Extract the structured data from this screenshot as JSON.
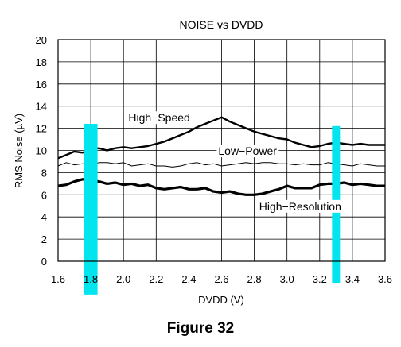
{
  "caption": "Figure 32",
  "chart_data": {
    "type": "line",
    "title": "NOISE vs DVDD",
    "xlabel": "DVDD (V)",
    "ylabel": "RMS Noise (µV)",
    "xlim": [
      1.6,
      3.6
    ],
    "ylim": [
      0,
      20
    ],
    "xticks": [
      "1.6",
      "1.8",
      "2.0",
      "2.2",
      "2.4",
      "2.6",
      "2.8",
      "3.0",
      "3.2",
      "3.4",
      "3.6"
    ],
    "yticks": [
      "0",
      "2",
      "4",
      "6",
      "8",
      "10",
      "12",
      "14",
      "16",
      "18",
      "20"
    ],
    "grid": true,
    "highlight_bands": [
      {
        "x": 1.8,
        "from": -3,
        "to": 12.4,
        "color": "#00e5ee"
      },
      {
        "x": 3.3,
        "from": -2,
        "to": 12.2,
        "color": "#00e5ee"
      }
    ],
    "series": [
      {
        "name": "High−Speed",
        "color": "#000000",
        "x": [
          1.6,
          1.65,
          1.7,
          1.75,
          1.8,
          1.85,
          1.9,
          1.95,
          2.0,
          2.05,
          2.1,
          2.15,
          2.2,
          2.25,
          2.3,
          2.35,
          2.4,
          2.45,
          2.5,
          2.55,
          2.6,
          2.65,
          2.7,
          2.75,
          2.8,
          2.85,
          2.9,
          2.95,
          3.0,
          3.05,
          3.1,
          3.15,
          3.2,
          3.25,
          3.3,
          3.35,
          3.4,
          3.45,
          3.5,
          3.55,
          3.6
        ],
        "y": [
          9.3,
          9.6,
          9.9,
          9.8,
          10.1,
          10.2,
          10.0,
          10.2,
          10.3,
          10.2,
          10.3,
          10.4,
          10.6,
          10.8,
          11.1,
          11.4,
          11.7,
          12.1,
          12.4,
          12.7,
          13.0,
          12.6,
          12.3,
          12.0,
          11.7,
          11.5,
          11.3,
          11.1,
          11.0,
          10.7,
          10.5,
          10.3,
          10.4,
          10.6,
          10.7,
          10.6,
          10.5,
          10.6,
          10.5,
          10.5,
          10.5
        ],
        "label_at": [
          2.03,
          12.6
        ]
      },
      {
        "name": "Low−Power",
        "color": "#000000",
        "x": [
          1.6,
          1.65,
          1.7,
          1.75,
          1.8,
          1.85,
          1.9,
          1.95,
          2.0,
          2.05,
          2.1,
          2.15,
          2.2,
          2.25,
          2.3,
          2.35,
          2.4,
          2.45,
          2.5,
          2.55,
          2.6,
          2.65,
          2.7,
          2.75,
          2.8,
          2.85,
          2.9,
          2.95,
          3.0,
          3.05,
          3.1,
          3.15,
          3.2,
          3.25,
          3.3,
          3.35,
          3.4,
          3.45,
          3.5,
          3.55,
          3.6
        ],
        "y": [
          8.6,
          8.9,
          8.7,
          8.8,
          8.7,
          8.9,
          8.9,
          8.8,
          8.9,
          8.6,
          8.7,
          8.8,
          8.6,
          8.6,
          8.5,
          8.6,
          8.8,
          8.9,
          8.7,
          8.8,
          8.6,
          8.7,
          8.8,
          8.9,
          8.8,
          8.9,
          8.9,
          8.8,
          8.8,
          8.7,
          8.8,
          8.7,
          8.7,
          8.9,
          8.8,
          8.7,
          8.6,
          8.8,
          8.7,
          8.6,
          8.6
        ],
        "label_at": [
          2.58,
          9.6
        ]
      },
      {
        "name": "High−Resolution",
        "color": "#000000",
        "x": [
          1.6,
          1.65,
          1.7,
          1.75,
          1.8,
          1.85,
          1.9,
          1.95,
          2.0,
          2.05,
          2.1,
          2.15,
          2.2,
          2.25,
          2.3,
          2.35,
          2.4,
          2.45,
          2.5,
          2.55,
          2.6,
          2.65,
          2.7,
          2.75,
          2.8,
          2.85,
          2.9,
          2.95,
          3.0,
          3.05,
          3.1,
          3.15,
          3.2,
          3.25,
          3.3,
          3.35,
          3.4,
          3.45,
          3.5,
          3.55,
          3.6
        ],
        "y": [
          6.8,
          6.9,
          7.2,
          7.4,
          7.3,
          7.2,
          7.0,
          7.1,
          6.9,
          7.0,
          6.8,
          6.9,
          6.6,
          6.5,
          6.6,
          6.7,
          6.5,
          6.5,
          6.6,
          6.3,
          6.2,
          6.3,
          6.1,
          6.0,
          6.0,
          6.1,
          6.3,
          6.5,
          6.8,
          6.6,
          6.6,
          6.6,
          6.9,
          7.0,
          7.0,
          7.1,
          6.9,
          7.0,
          6.9,
          6.8,
          6.8
        ],
        "label_at": [
          2.83,
          4.6
        ]
      }
    ]
  }
}
